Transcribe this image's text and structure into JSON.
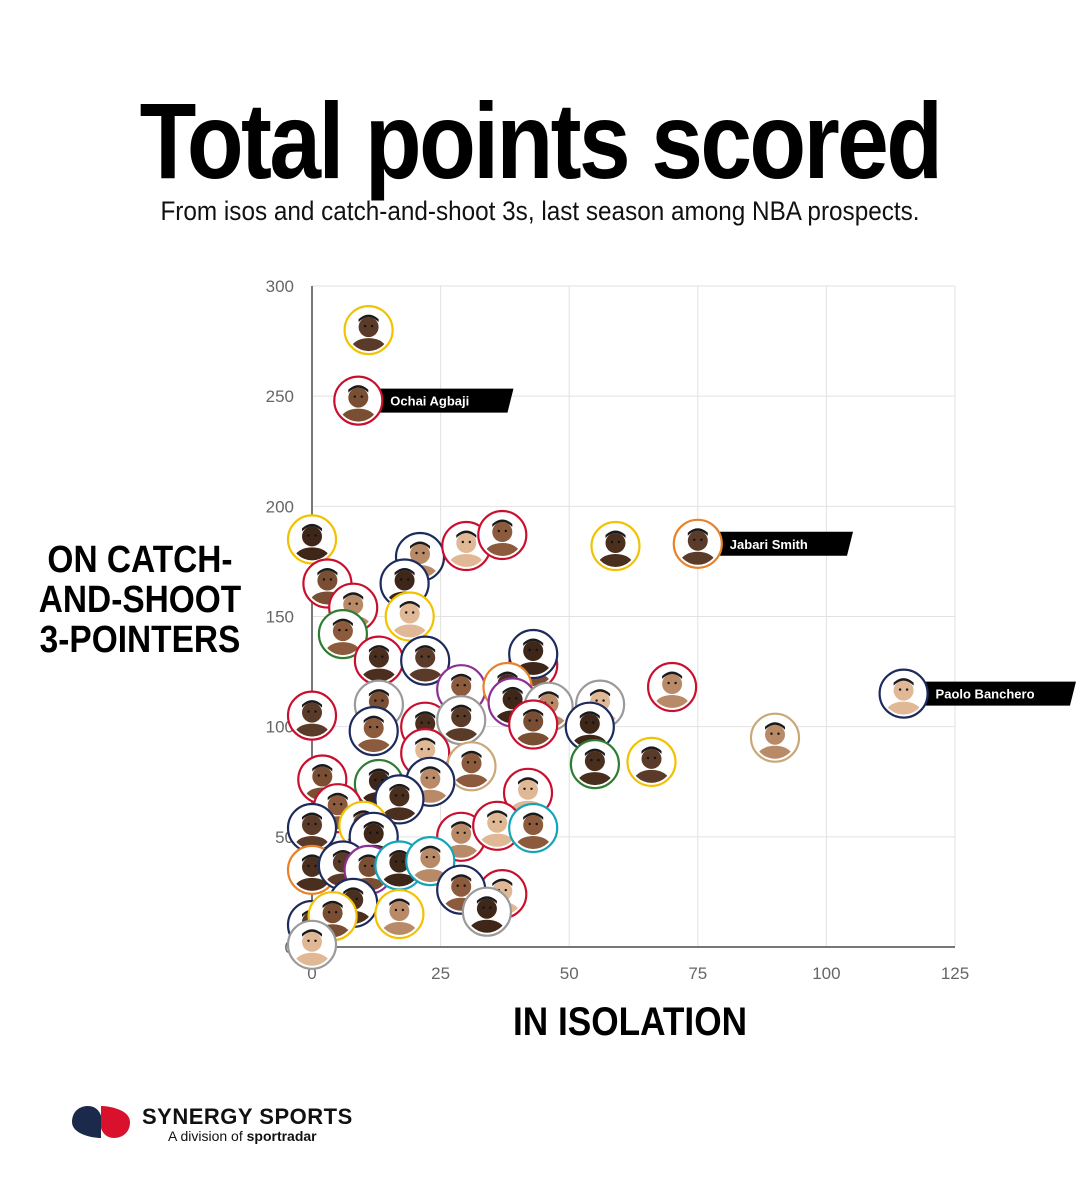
{
  "header": {
    "title": "Total points scored",
    "subtitle": "From isos and catch-and-shoot 3s, last season among NBA prospects."
  },
  "branding": {
    "company": "SYNERGY SPORTS",
    "division_prefix": "A division of ",
    "parent": "sportradar"
  },
  "colors": {
    "gold": "#f2c200",
    "red": "#c8102e",
    "navy": "#1d2a5c",
    "green": "#2e7d32",
    "teal": "#14a3b8",
    "orange": "#e8812a",
    "purple": "#8b2f97",
    "gray": "#9a9a9a",
    "tan": "#c9a878",
    "label_bg": "#000000",
    "grid": "#e2e2e2",
    "axis": "#777777"
  },
  "chart_data": {
    "type": "scatter",
    "title": "Total points scored",
    "subtitle": "From isos and catch-and-shoot 3s, last season among NBA prospects.",
    "xlabel": "IN ISOLATION",
    "ylabel": "ON CATCH-AND-SHOOT 3-POINTERS",
    "xlim": [
      0,
      125
    ],
    "ylim": [
      0,
      300
    ],
    "xticks": [
      0,
      25,
      50,
      75,
      100,
      125
    ],
    "yticks": [
      0,
      50,
      100,
      150,
      200,
      250,
      300
    ],
    "grid": true,
    "marker": "player-headshot-circle",
    "points": [
      {
        "x": 11,
        "y": 280,
        "ring": "gold"
      },
      {
        "x": 9,
        "y": 248,
        "ring": "red",
        "label": "Ochai Agbaji"
      },
      {
        "x": 0,
        "y": 185,
        "ring": "gold"
      },
      {
        "x": 21,
        "y": 177,
        "ring": "navy"
      },
      {
        "x": 30,
        "y": 182,
        "ring": "red"
      },
      {
        "x": 37,
        "y": 187,
        "ring": "red"
      },
      {
        "x": 59,
        "y": 182,
        "ring": "gold"
      },
      {
        "x": 75,
        "y": 183,
        "ring": "orange",
        "label": "Jabari Smith"
      },
      {
        "x": 3,
        "y": 165,
        "ring": "red"
      },
      {
        "x": 18,
        "y": 165,
        "ring": "navy"
      },
      {
        "x": 8,
        "y": 154,
        "ring": "red"
      },
      {
        "x": 19,
        "y": 150,
        "ring": "gold"
      },
      {
        "x": 6,
        "y": 142,
        "ring": "green"
      },
      {
        "x": 13,
        "y": 130,
        "ring": "red"
      },
      {
        "x": 22,
        "y": 130,
        "ring": "navy"
      },
      {
        "x": 43,
        "y": 128,
        "ring": "red"
      },
      {
        "x": 43,
        "y": 133,
        "ring": "navy"
      },
      {
        "x": 70,
        "y": 118,
        "ring": "red"
      },
      {
        "x": 115,
        "y": 115,
        "ring": "navy",
        "label": "Paolo Banchero"
      },
      {
        "x": 29,
        "y": 117,
        "ring": "purple"
      },
      {
        "x": 38,
        "y": 118,
        "ring": "orange"
      },
      {
        "x": 0,
        "y": 105,
        "ring": "red"
      },
      {
        "x": 13,
        "y": 110,
        "ring": "gray"
      },
      {
        "x": 39,
        "y": 111,
        "ring": "purple"
      },
      {
        "x": 46,
        "y": 109,
        "ring": "gray"
      },
      {
        "x": 56,
        "y": 110,
        "ring": "gray"
      },
      {
        "x": 12,
        "y": 98,
        "ring": "navy"
      },
      {
        "x": 22,
        "y": 100,
        "ring": "red"
      },
      {
        "x": 29,
        "y": 103,
        "ring": "gray"
      },
      {
        "x": 43,
        "y": 101,
        "ring": "red"
      },
      {
        "x": 54,
        "y": 100,
        "ring": "navy"
      },
      {
        "x": 90,
        "y": 95,
        "ring": "tan"
      },
      {
        "x": 22,
        "y": 88,
        "ring": "red"
      },
      {
        "x": 31,
        "y": 82,
        "ring": "tan"
      },
      {
        "x": 55,
        "y": 83,
        "ring": "green"
      },
      {
        "x": 66,
        "y": 84,
        "ring": "gold"
      },
      {
        "x": 2,
        "y": 76,
        "ring": "red"
      },
      {
        "x": 13,
        "y": 74,
        "ring": "green"
      },
      {
        "x": 23,
        "y": 75,
        "ring": "navy"
      },
      {
        "x": 42,
        "y": 70,
        "ring": "red"
      },
      {
        "x": 5,
        "y": 63,
        "ring": "red"
      },
      {
        "x": 17,
        "y": 67,
        "ring": "navy"
      },
      {
        "x": 0,
        "y": 54,
        "ring": "navy"
      },
      {
        "x": 10,
        "y": 55,
        "ring": "gold"
      },
      {
        "x": 12,
        "y": 50,
        "ring": "navy"
      },
      {
        "x": 29,
        "y": 50,
        "ring": "red"
      },
      {
        "x": 36,
        "y": 55,
        "ring": "red"
      },
      {
        "x": 43,
        "y": 54,
        "ring": "teal"
      },
      {
        "x": 0,
        "y": 35,
        "ring": "orange"
      },
      {
        "x": 6,
        "y": 37,
        "ring": "navy"
      },
      {
        "x": 11,
        "y": 35,
        "ring": "purple"
      },
      {
        "x": 17,
        "y": 37,
        "ring": "teal"
      },
      {
        "x": 23,
        "y": 39,
        "ring": "teal"
      },
      {
        "x": 37,
        "y": 24,
        "ring": "red"
      },
      {
        "x": 29,
        "y": 26,
        "ring": "navy"
      },
      {
        "x": 8,
        "y": 20,
        "ring": "navy"
      },
      {
        "x": 0,
        "y": 10,
        "ring": "navy"
      },
      {
        "x": 4,
        "y": 14,
        "ring": "gold"
      },
      {
        "x": 34,
        "y": 16,
        "ring": "gray"
      },
      {
        "x": 17,
        "y": 15,
        "ring": "gold"
      },
      {
        "x": 0,
        "y": 1,
        "ring": "gray"
      }
    ]
  }
}
